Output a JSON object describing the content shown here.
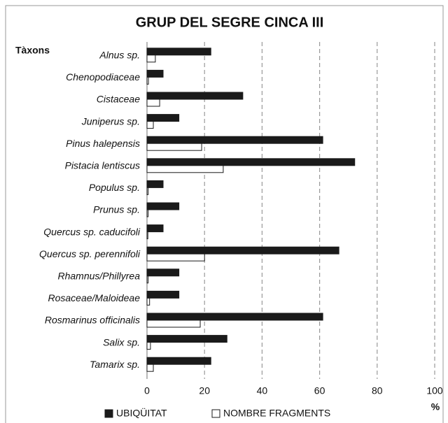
{
  "chart_data": {
    "type": "barh",
    "title": "GRUP DEL SEGRE CINCA III",
    "ylabel": "Tàxons",
    "xlabel": "%",
    "categories": [
      "Alnus sp.",
      "Chenopodiaceae",
      "Cistaceae",
      "Juniperus sp.",
      "Pinus halepensis",
      "Pistacia lentiscus",
      "Populus sp.",
      "Prunus sp.",
      "Quercus sp. caducifoli",
      "Quercus sp. perennifoli",
      "Rhamnus/Phillyrea",
      "Rosaceae/Maloideae",
      "Rosmarinus officinalis",
      "Salix sp.",
      "Tamarix sp."
    ],
    "series": [
      {
        "name": "UBIQÜITAT",
        "color": "#1a1a1a",
        "values": [
          22.2,
          5.6,
          33.3,
          11.1,
          61.1,
          72.2,
          5.6,
          11.1,
          5.6,
          66.7,
          11.1,
          11.1,
          61.1,
          27.8,
          22.2
        ]
      },
      {
        "name": "NOMBRE FRAGMENTS",
        "color": "#ffffff",
        "values": [
          2.9,
          0.5,
          4.4,
          2.2,
          19,
          26.5,
          0.4,
          0.4,
          0.3,
          20,
          0.4,
          0.9,
          18.5,
          1.2,
          2.2
        ]
      }
    ],
    "xlim": [
      0,
      100
    ],
    "xticks": [
      0,
      20,
      40,
      60,
      80,
      100
    ],
    "grid": true,
    "legend": "bottom"
  }
}
